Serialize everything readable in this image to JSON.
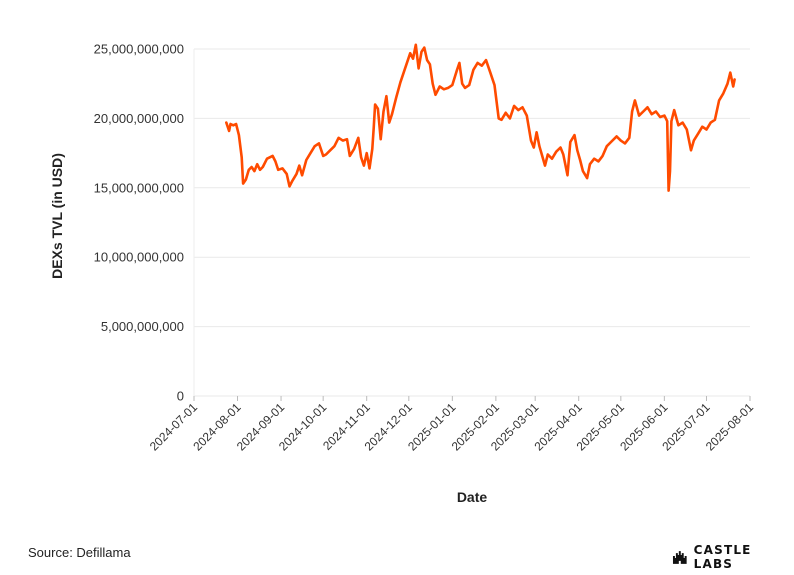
{
  "chart_data": {
    "type": "line",
    "xlabel": "Date",
    "ylabel": "DEXs TVL (in USD)",
    "ylim": [
      0,
      25000000000
    ],
    "y_ticks": [
      "0",
      "5,000,000,000",
      "10,000,000,000",
      "15,000,000,000",
      "20,000,000,000",
      "25,000,000,000"
    ],
    "y_tick_values": [
      0,
      5000000000,
      10000000000,
      15000000000,
      20000000000,
      25000000000
    ],
    "x_ticks": [
      "2024-07-01",
      "2024-08-01",
      "2024-09-01",
      "2024-10-01",
      "2024-11-01",
      "2024-12-01",
      "2025-01-01",
      "2025-02-01",
      "2025-03-01",
      "2025-04-01",
      "2025-05-01",
      "2025-06-01",
      "2025-07-01",
      "2025-08-01"
    ],
    "xlim": [
      "2024-07-01",
      "2025-08-01"
    ],
    "grid": "horizontal",
    "line_color": "#ff4b00",
    "series": [
      {
        "points": [
          [
            "2024-07-24",
            19700000000
          ],
          [
            "2024-07-26",
            19100000000
          ],
          [
            "2024-07-27",
            19600000000
          ],
          [
            "2024-07-29",
            19500000000
          ],
          [
            "2024-07-31",
            19600000000
          ],
          [
            "2024-08-02",
            18800000000
          ],
          [
            "2024-08-04",
            17200000000
          ],
          [
            "2024-08-05",
            15300000000
          ],
          [
            "2024-08-07",
            15600000000
          ],
          [
            "2024-08-09",
            16300000000
          ],
          [
            "2024-08-11",
            16500000000
          ],
          [
            "2024-08-13",
            16200000000
          ],
          [
            "2024-08-15",
            16700000000
          ],
          [
            "2024-08-17",
            16300000000
          ],
          [
            "2024-08-19",
            16500000000
          ],
          [
            "2024-08-22",
            17100000000
          ],
          [
            "2024-08-26",
            17300000000
          ],
          [
            "2024-08-28",
            16900000000
          ],
          [
            "2024-08-30",
            16300000000
          ],
          [
            "2024-09-02",
            16400000000
          ],
          [
            "2024-09-05",
            16000000000
          ],
          [
            "2024-09-07",
            15100000000
          ],
          [
            "2024-09-09",
            15500000000
          ],
          [
            "2024-09-12",
            16000000000
          ],
          [
            "2024-09-14",
            16600000000
          ],
          [
            "2024-09-16",
            15900000000
          ],
          [
            "2024-09-19",
            17000000000
          ],
          [
            "2024-09-22",
            17500000000
          ],
          [
            "2024-09-25",
            18000000000
          ],
          [
            "2024-09-28",
            18200000000
          ],
          [
            "2024-10-01",
            17300000000
          ],
          [
            "2024-10-03",
            17400000000
          ],
          [
            "2024-10-06",
            17700000000
          ],
          [
            "2024-10-09",
            18000000000
          ],
          [
            "2024-10-12",
            18600000000
          ],
          [
            "2024-10-15",
            18400000000
          ],
          [
            "2024-10-18",
            18500000000
          ],
          [
            "2024-10-20",
            17300000000
          ],
          [
            "2024-10-23",
            17800000000
          ],
          [
            "2024-10-26",
            18600000000
          ],
          [
            "2024-10-28",
            17200000000
          ],
          [
            "2024-10-30",
            16600000000
          ],
          [
            "2024-11-01",
            17500000000
          ],
          [
            "2024-11-03",
            16400000000
          ],
          [
            "2024-11-05",
            17800000000
          ],
          [
            "2024-11-06",
            19300000000
          ],
          [
            "2024-11-07",
            21000000000
          ],
          [
            "2024-11-09",
            20700000000
          ],
          [
            "2024-11-11",
            18500000000
          ],
          [
            "2024-11-13",
            20500000000
          ],
          [
            "2024-11-15",
            21600000000
          ],
          [
            "2024-11-17",
            19700000000
          ],
          [
            "2024-11-19",
            20300000000
          ],
          [
            "2024-11-22",
            21500000000
          ],
          [
            "2024-11-25",
            22600000000
          ],
          [
            "2024-11-28",
            23500000000
          ],
          [
            "2024-12-02",
            24700000000
          ],
          [
            "2024-12-04",
            24300000000
          ],
          [
            "2024-12-06",
            25300000000
          ],
          [
            "2024-12-08",
            23600000000
          ],
          [
            "2024-12-10",
            24800000000
          ],
          [
            "2024-12-12",
            25100000000
          ],
          [
            "2024-12-14",
            24200000000
          ],
          [
            "2024-12-16",
            23900000000
          ],
          [
            "2024-12-18",
            22500000000
          ],
          [
            "2024-12-20",
            21700000000
          ],
          [
            "2024-12-23",
            22300000000
          ],
          [
            "2024-12-26",
            22100000000
          ],
          [
            "2024-12-29",
            22200000000
          ],
          [
            "2025-01-01",
            22400000000
          ],
          [
            "2025-01-04",
            23400000000
          ],
          [
            "2025-01-06",
            24000000000
          ],
          [
            "2025-01-08",
            22500000000
          ],
          [
            "2025-01-10",
            22200000000
          ],
          [
            "2025-01-13",
            22400000000
          ],
          [
            "2025-01-16",
            23500000000
          ],
          [
            "2025-01-19",
            24000000000
          ],
          [
            "2025-01-22",
            23800000000
          ],
          [
            "2025-01-25",
            24200000000
          ],
          [
            "2025-01-28",
            23300000000
          ],
          [
            "2025-01-31",
            22400000000
          ],
          [
            "2025-02-03",
            20000000000
          ],
          [
            "2025-02-05",
            19900000000
          ],
          [
            "2025-02-08",
            20400000000
          ],
          [
            "2025-02-11",
            20000000000
          ],
          [
            "2025-02-14",
            20900000000
          ],
          [
            "2025-02-17",
            20600000000
          ],
          [
            "2025-02-20",
            20800000000
          ],
          [
            "2025-02-23",
            20200000000
          ],
          [
            "2025-02-26",
            18400000000
          ],
          [
            "2025-02-28",
            17900000000
          ],
          [
            "2025-03-02",
            19000000000
          ],
          [
            "2025-03-04",
            18000000000
          ],
          [
            "2025-03-06",
            17300000000
          ],
          [
            "2025-03-08",
            16600000000
          ],
          [
            "2025-03-10",
            17400000000
          ],
          [
            "2025-03-13",
            17100000000
          ],
          [
            "2025-03-16",
            17600000000
          ],
          [
            "2025-03-19",
            17900000000
          ],
          [
            "2025-03-21",
            17400000000
          ],
          [
            "2025-03-24",
            15900000000
          ],
          [
            "2025-03-26",
            18300000000
          ],
          [
            "2025-03-29",
            18800000000
          ],
          [
            "2025-03-31",
            17700000000
          ],
          [
            "2025-04-02",
            17000000000
          ],
          [
            "2025-04-04",
            16200000000
          ],
          [
            "2025-04-07",
            15700000000
          ],
          [
            "2025-04-09",
            16700000000
          ],
          [
            "2025-04-12",
            17100000000
          ],
          [
            "2025-04-15",
            16900000000
          ],
          [
            "2025-04-18",
            17300000000
          ],
          [
            "2025-04-21",
            18000000000
          ],
          [
            "2025-04-24",
            18300000000
          ],
          [
            "2025-04-28",
            18700000000
          ],
          [
            "2025-05-01",
            18400000000
          ],
          [
            "2025-05-04",
            18200000000
          ],
          [
            "2025-05-07",
            18600000000
          ],
          [
            "2025-05-09",
            20500000000
          ],
          [
            "2025-05-11",
            21300000000
          ],
          [
            "2025-05-14",
            20200000000
          ],
          [
            "2025-05-17",
            20500000000
          ],
          [
            "2025-05-20",
            20800000000
          ],
          [
            "2025-05-23",
            20300000000
          ],
          [
            "2025-05-26",
            20500000000
          ],
          [
            "2025-05-29",
            20100000000
          ],
          [
            "2025-06-01",
            20200000000
          ],
          [
            "2025-06-03",
            19800000000
          ],
          [
            "2025-06-04",
            14800000000
          ],
          [
            "2025-06-05",
            16200000000
          ],
          [
            "2025-06-06",
            19800000000
          ],
          [
            "2025-06-08",
            20600000000
          ],
          [
            "2025-06-11",
            19500000000
          ],
          [
            "2025-06-14",
            19700000000
          ],
          [
            "2025-06-17",
            19200000000
          ],
          [
            "2025-06-20",
            17700000000
          ],
          [
            "2025-06-22",
            18400000000
          ],
          [
            "2025-06-25",
            18900000000
          ],
          [
            "2025-06-28",
            19400000000
          ],
          [
            "2025-07-01",
            19200000000
          ],
          [
            "2025-07-04",
            19700000000
          ],
          [
            "2025-07-07",
            19900000000
          ],
          [
            "2025-07-10",
            21300000000
          ],
          [
            "2025-07-13",
            21800000000
          ],
          [
            "2025-07-16",
            22500000000
          ],
          [
            "2025-07-18",
            23300000000
          ],
          [
            "2025-07-20",
            22300000000
          ],
          [
            "2025-07-21",
            22800000000
          ]
        ]
      }
    ]
  },
  "footer": {
    "source": "Source: Defillama",
    "logo_text": "CASTLE LABS",
    "logo_icon": "castle-icon"
  }
}
